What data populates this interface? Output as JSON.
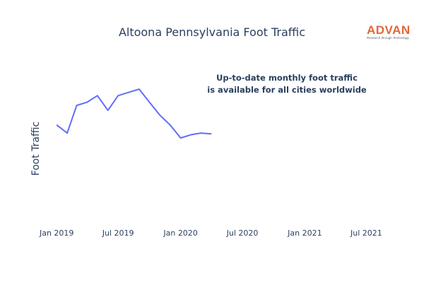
{
  "logo": {
    "name": "ADVAN",
    "tagline": "Research through Technology",
    "color": "#e3653a"
  },
  "annotation": {
    "line1": "Up-to-date monthly foot traffic",
    "line2": "is available for all cities worldwide"
  },
  "chart_data": {
    "type": "line",
    "title": "Altoona Pennsylvania Foot Traffic",
    "xlabel": "",
    "ylabel": "Foot Traffic",
    "x_tick_labels": [
      "Jan 2019",
      "Jul 2019",
      "Jan 2020",
      "Jul 2020",
      "Jan 2021",
      "Jul 2021"
    ],
    "x_tick_dates": [
      "2019-01-01",
      "2019-07-01",
      "2020-01-01",
      "2020-07-01",
      "2021-01-01",
      "2021-07-01"
    ],
    "xlim": [
      "2018-11-20",
      "2021-08-15"
    ],
    "ylim": [
      0,
      100
    ],
    "grid": false,
    "legend": "none",
    "series": [
      {
        "color": "#636efa",
        "x": [
          "2019-01-01",
          "2019-02-01",
          "2019-03-01",
          "2019-04-01",
          "2019-05-01",
          "2019-06-01",
          "2019-07-01",
          "2019-08-01",
          "2019-09-01",
          "2019-10-01",
          "2019-11-01",
          "2019-12-01",
          "2020-01-01",
          "2020-02-01",
          "2020-03-01",
          "2020-04-01"
        ],
        "y": [
          58,
          53,
          70,
          72,
          76,
          67,
          76,
          78,
          80,
          72,
          64,
          58,
          50,
          52,
          53,
          52.5
        ]
      }
    ]
  }
}
